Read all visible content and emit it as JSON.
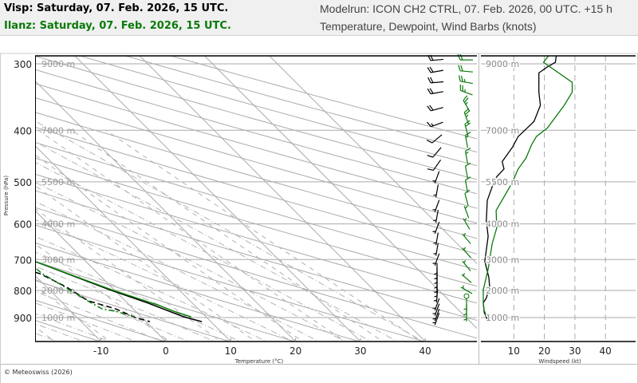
{
  "header": {
    "visp_title": "Visp: Saturday, 07. Feb. 2026, 15 UTC.",
    "ilanz_title": "Ilanz: Saturday, 07. Feb. 2026, 15 UTC.",
    "modelrun": "Modelrun: ICON CH2 CTRL, 07. Feb. 2026, 00 UTC. +15 h",
    "variables": "Temperature, Dewpoint, Wind Barbs (knots)"
  },
  "footer": {
    "copyright": "© Meteoswiss (2026)"
  },
  "colors": {
    "visp": "#000000",
    "ilanz": "#0a7a0a",
    "grid": "#aaaaaa",
    "header_bg": "#f0f0f0"
  },
  "chart_data": [
    {
      "type": "line",
      "diagram": "skew-T log-p",
      "xlabel": "Temperature (°C)",
      "ylabel": "Pressure (hPa)",
      "x_ticks": [
        "-10",
        "0",
        "10",
        "20",
        "30",
        "40"
      ],
      "y_ticks": [
        "300",
        "400",
        "500",
        "600",
        "700",
        "800",
        "900"
      ],
      "height_labels": [
        "9000 m",
        "7000 m",
        "5500 m",
        "4000 m",
        "3000 m",
        "2000 m",
        "1000 m"
      ],
      "y_scale": "log",
      "grid": true,
      "series": {
        "visp": {
          "color": "#000000",
          "temperature": [
            [
              290,
              -56.1
            ],
            [
              298,
              -56.3
            ],
            [
              313,
              -55.0
            ],
            [
              339,
              -50.2
            ],
            [
              398,
              -40.1
            ],
            [
              427,
              -35.8
            ],
            [
              457,
              -31.6
            ],
            [
              500,
              -26.8
            ],
            [
              518,
              -24.0
            ],
            [
              563,
              -19.3
            ],
            [
              606,
              -15.1
            ],
            [
              705,
              -7.9
            ],
            [
              798,
              -0.7
            ],
            [
              846,
              3.2
            ],
            [
              897,
              6.6
            ],
            [
              916,
              8.6
            ]
          ],
          "dewpoint": [
            [
              294,
              -57.2
            ],
            [
              339,
              -51.4
            ],
            [
              359,
              -46.4
            ],
            [
              385,
              -42.3
            ],
            [
              487,
              -29.0
            ],
            [
              500,
              -31.7
            ],
            [
              513,
              -35.8
            ],
            [
              536,
              -38.3
            ],
            [
              549,
              -37.0
            ],
            [
              568,
              -32.1
            ],
            [
              599,
              -25.0
            ],
            [
              627,
              -19.7
            ],
            [
              688,
              -14.3
            ],
            [
              717,
              -11.9
            ],
            [
              744,
              -9.0
            ],
            [
              789,
              -6.9
            ],
            [
              837,
              -5.7
            ],
            [
              867,
              -2.7
            ],
            [
              900,
              -1.0
            ],
            [
              916,
              0.6
            ]
          ]
        },
        "ilanz": {
          "color": "#0a7a0a",
          "temperature": [
            [
              290,
              -55.5
            ],
            [
              298,
              -56.1
            ],
            [
              324,
              -52.4
            ],
            [
              398,
              -40.1
            ],
            [
              500,
              -26.8
            ],
            [
              563,
              -19.8
            ],
            [
              606,
              -15.5
            ],
            [
              705,
              -7.9
            ],
            [
              798,
              -0.4
            ],
            [
              855,
              4.6
            ],
            [
              876,
              5.9
            ],
            [
              897,
              7.7
            ]
          ],
          "dewpoint": [
            [
              292,
              -59.2
            ],
            [
              313,
              -57.1
            ],
            [
              330,
              -54.4
            ],
            [
              341,
              -51.5
            ],
            [
              359,
              -49.7
            ],
            [
              369,
              -48.5
            ],
            [
              386,
              -48.3
            ],
            [
              412,
              -48.8
            ],
            [
              436,
              -48.3
            ],
            [
              462,
              -45.6
            ],
            [
              490,
              -41.9
            ],
            [
              513,
              -35.8
            ],
            [
              534,
              -29.8
            ],
            [
              563,
              -26.0
            ],
            [
              578,
              -25.0
            ],
            [
              606,
              -20.0
            ],
            [
              627,
              -17.6
            ],
            [
              664,
              -12.2
            ],
            [
              692,
              -9.5
            ],
            [
              711,
              -9.0
            ],
            [
              744,
              -8.6
            ],
            [
              798,
              -6.9
            ],
            [
              840,
              -5.7
            ],
            [
              867,
              -4.8
            ],
            [
              876,
              -3.0
            ],
            [
              897,
              -1.1
            ]
          ]
        }
      },
      "wind_barbs": {
        "visp": [
          [
            295,
            265,
            20
          ],
          [
            310,
            260,
            20
          ],
          [
            325,
            265,
            20
          ],
          [
            340,
            260,
            20
          ],
          [
            365,
            255,
            18
          ],
          [
            390,
            250,
            15
          ],
          [
            415,
            230,
            12
          ],
          [
            440,
            220,
            10
          ],
          [
            465,
            215,
            8
          ],
          [
            490,
            200,
            5
          ],
          [
            520,
            190,
            5
          ],
          [
            555,
            200,
            5
          ],
          [
            580,
            190,
            5
          ],
          [
            610,
            200,
            5
          ],
          [
            640,
            190,
            5
          ],
          [
            670,
            190,
            5
          ],
          [
            700,
            200,
            5
          ],
          [
            730,
            180,
            5
          ],
          [
            745,
            180,
            5
          ],
          [
            760,
            180,
            5
          ],
          [
            775,
            180,
            5
          ],
          [
            790,
            180,
            5
          ],
          [
            805,
            180,
            5
          ],
          [
            820,
            185,
            5
          ],
          [
            850,
            200,
            5
          ],
          [
            870,
            200,
            5
          ],
          [
            890,
            200,
            5
          ],
          [
            905,
            200,
            5
          ]
        ],
        "ilanz": [
          [
            295,
            270,
            20
          ],
          [
            310,
            275,
            20
          ],
          [
            325,
            280,
            25
          ],
          [
            340,
            290,
            25
          ],
          [
            360,
            330,
            25
          ],
          [
            380,
            340,
            25
          ],
          [
            400,
            345,
            20
          ],
          [
            420,
            350,
            15
          ],
          [
            450,
            350,
            15
          ],
          [
            480,
            350,
            10
          ],
          [
            510,
            350,
            10
          ],
          [
            540,
            345,
            10
          ],
          [
            570,
            340,
            5
          ],
          [
            600,
            330,
            5
          ],
          [
            640,
            320,
            5
          ],
          [
            680,
            320,
            5
          ],
          [
            720,
            320,
            5
          ],
          [
            760,
            310,
            5
          ],
          [
            800,
            300,
            5
          ],
          [
            820,
            0,
            0
          ],
          [
            850,
            180,
            5
          ],
          [
            870,
            180,
            5
          ],
          [
            890,
            180,
            5
          ]
        ]
      }
    },
    {
      "type": "line",
      "xlabel": "Windspeed (kt)",
      "x_ticks": [
        "10",
        "20",
        "30",
        "40"
      ],
      "xlim": [
        0,
        50
      ],
      "height_labels": [
        "9000 m",
        "7000 m",
        "5500 m",
        "4000 m",
        "3000 m",
        "2000 m",
        "1000 m"
      ],
      "series": {
        "visp": {
          "color": "#000000",
          "speed": [
            [
              290,
              23.9
            ],
            [
              298,
              23.6
            ],
            [
              304,
              21
            ],
            [
              312,
              18.2
            ],
            [
              339,
              18.2
            ],
            [
              359,
              18.7
            ],
            [
              385,
              16.6
            ],
            [
              398,
              14
            ],
            [
              411,
              11.4
            ],
            [
              430,
              9.6
            ],
            [
              458,
              6.2
            ],
            [
              473,
              6.8
            ],
            [
              489,
              4.4
            ],
            [
              511,
              2.9
            ],
            [
              542,
              1.3
            ],
            [
              592,
              1.0
            ],
            [
              633,
              1.6
            ],
            [
              705,
              0.5
            ],
            [
              755,
              1.8
            ],
            [
              788,
              2.1
            ],
            [
              827,
              1.0
            ],
            [
              844,
              0
            ],
            [
              879,
              0.3
            ],
            [
              916,
              1.6
            ]
          ]
        },
        "ilanz": {
          "color": "#0a7a0a",
          "speed": [
            [
              290,
              21.3
            ],
            [
              298,
              19.7
            ],
            [
              325,
              29.1
            ],
            [
              339,
              29.1
            ],
            [
              359,
              26.5
            ],
            [
              396,
              21
            ],
            [
              411,
              17.4
            ],
            [
              426,
              15.8
            ],
            [
              451,
              14
            ],
            [
              473,
              11.4
            ],
            [
              500,
              9.6
            ],
            [
              518,
              8.1
            ],
            [
              566,
              4.2
            ],
            [
              610,
              4.4
            ],
            [
              654,
              2.9
            ],
            [
              730,
              1.6
            ],
            [
              798,
              0
            ],
            [
              844,
              0
            ],
            [
              873,
              0.3
            ],
            [
              900,
              1.3
            ]
          ]
        }
      }
    }
  ]
}
